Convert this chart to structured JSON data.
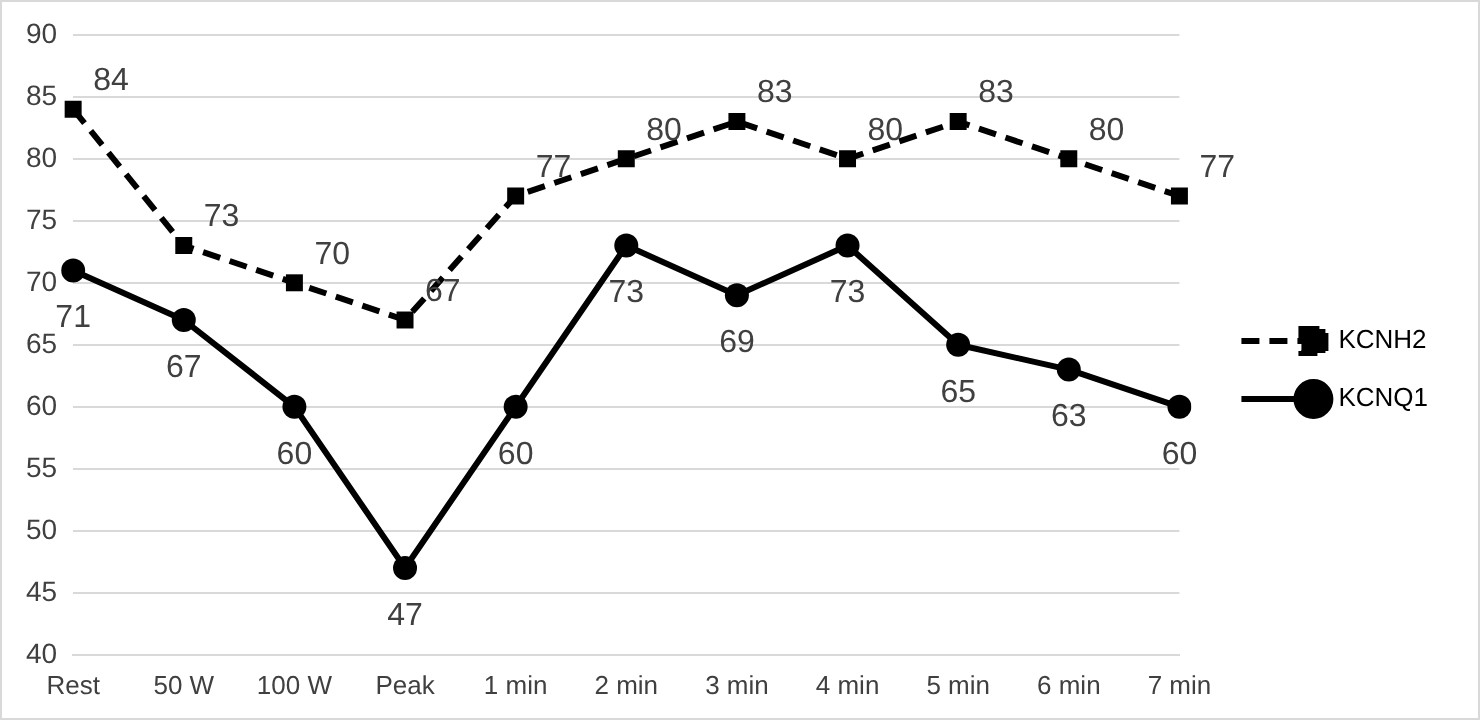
{
  "chart_data": {
    "type": "line",
    "categories": [
      "Rest",
      "50 W",
      "100 W",
      "Peak",
      "1 min",
      "2 min",
      "3 min",
      "4 min",
      "5 min",
      "6 min",
      "7 min"
    ],
    "series": [
      {
        "name": "KCNH2",
        "color": "#000000",
        "line_style": "dashed",
        "marker": "square",
        "values": [
          84,
          73,
          70,
          67,
          77,
          80,
          83,
          80,
          83,
          80,
          77
        ]
      },
      {
        "name": "KCNQ1",
        "color": "#000000",
        "line_style": "solid",
        "marker": "circle",
        "values": [
          71,
          67,
          60,
          47,
          60,
          73,
          69,
          73,
          65,
          63,
          60
        ]
      }
    ],
    "ylim": [
      40,
      90
    ],
    "yticks": [
      40,
      45,
      50,
      55,
      60,
      65,
      70,
      75,
      80,
      85,
      90
    ],
    "grid": "y",
    "legend": "right",
    "data_labels": true
  }
}
